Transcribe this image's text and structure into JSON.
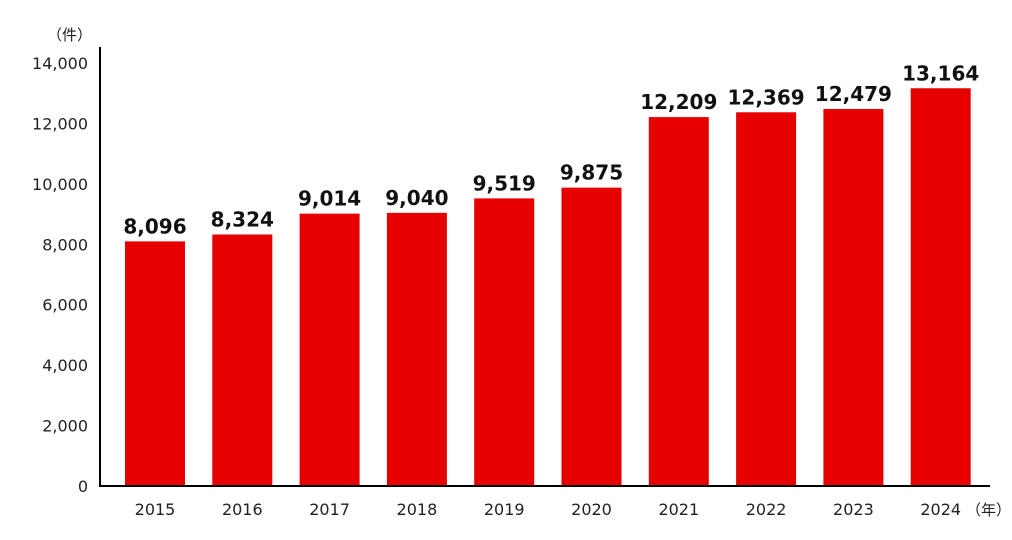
{
  "chart_data": {
    "type": "bar",
    "title": "",
    "xlabel": "",
    "ylabel": "",
    "y_unit_label": "（件）",
    "x_unit_label": "（年）",
    "categories": [
      "2015",
      "2016",
      "2017",
      "2018",
      "2019",
      "2020",
      "2021",
      "2022",
      "2023",
      "2024"
    ],
    "values": [
      8096,
      8324,
      9014,
      9040,
      9519,
      9875,
      12209,
      12369,
      12479,
      13164
    ],
    "data_labels": [
      "8,096",
      "8,324",
      "9,014",
      "9,040",
      "9,519",
      "9,875",
      "12,209",
      "12,369",
      "12,479",
      "13,164"
    ],
    "ylim": [
      0,
      14000
    ],
    "yticks": [
      0,
      2000,
      4000,
      6000,
      8000,
      10000,
      12000,
      14000
    ],
    "ytick_labels": [
      "0",
      "2,000",
      "4,000",
      "6,000",
      "8,000",
      "10,000",
      "12,000",
      "14,000"
    ],
    "grid": false,
    "bar_color": "#e60000"
  }
}
